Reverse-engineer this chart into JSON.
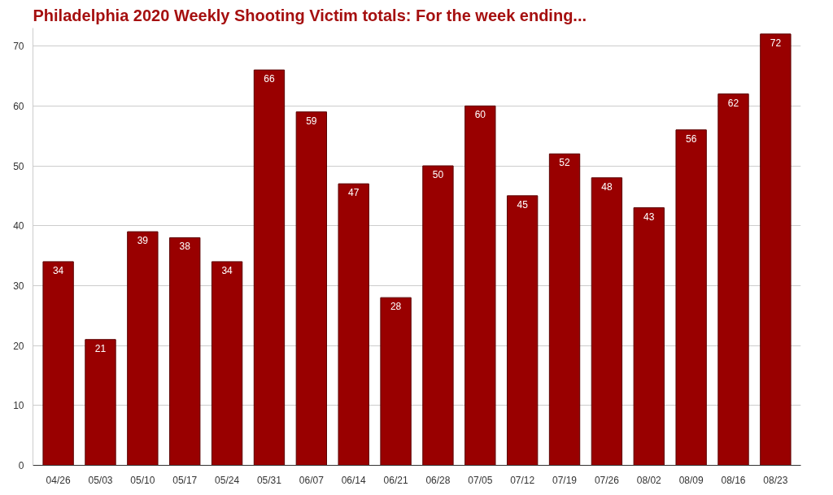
{
  "chart_data": {
    "type": "bar",
    "title": "Philadelphia 2020 Weekly Shooting Victim totals: For the week ending...",
    "categories": [
      "04/26",
      "05/03",
      "05/10",
      "05/17",
      "05/24",
      "05/31",
      "06/07",
      "06/14",
      "06/21",
      "06/28",
      "07/05",
      "07/12",
      "07/19",
      "07/26",
      "08/02",
      "08/09",
      "08/16",
      "08/23"
    ],
    "values": [
      34,
      21,
      39,
      38,
      34,
      66,
      59,
      47,
      28,
      50,
      60,
      45,
      52,
      48,
      43,
      56,
      62,
      72
    ],
    "color": "#990000",
    "ylim": [
      0,
      73
    ],
    "yticks": [
      0,
      10,
      20,
      30,
      40,
      50,
      60,
      70
    ],
    "grid": "y",
    "data_labels": true
  }
}
